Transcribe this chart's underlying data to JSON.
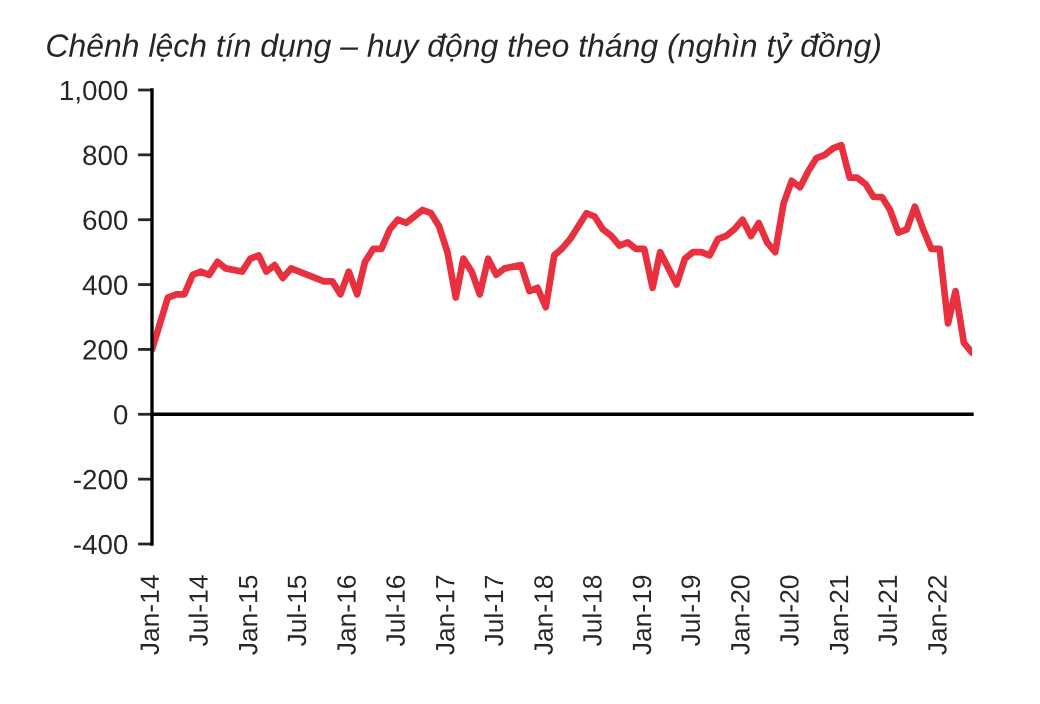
{
  "chart_data": {
    "type": "line",
    "title": "Chênh lệch tín dụng – huy động theo tháng (nghìn tỷ đồng)",
    "x": [
      "2014-01",
      "2014-03",
      "2014-04",
      "2014-05",
      "2014-06",
      "2014-07",
      "2014-08",
      "2014-09",
      "2014-10",
      "2014-12",
      "2015-01",
      "2015-02",
      "2015-03",
      "2015-04",
      "2015-05",
      "2015-06",
      "2015-08",
      "2015-10",
      "2015-11",
      "2015-12",
      "2016-01",
      "2016-02",
      "2016-03",
      "2016-04",
      "2016-05",
      "2016-06",
      "2016-07",
      "2016-08",
      "2016-10",
      "2016-11",
      "2016-12",
      "2017-01",
      "2017-02",
      "2017-03",
      "2017-04",
      "2017-05",
      "2017-06",
      "2017-07",
      "2017-08",
      "2017-10",
      "2017-11",
      "2017-12",
      "2018-01",
      "2018-02",
      "2018-03",
      "2018-04",
      "2018-06",
      "2018-07",
      "2018-08",
      "2018-09",
      "2018-10",
      "2018-11",
      "2018-12",
      "2019-01",
      "2019-02",
      "2019-03",
      "2019-04",
      "2019-05",
      "2019-06",
      "2019-07",
      "2019-08",
      "2019-09",
      "2019-10",
      "2019-11",
      "2019-12",
      "2020-01",
      "2020-02",
      "2020-03",
      "2020-04",
      "2020-05",
      "2020-06",
      "2020-07",
      "2020-08",
      "2020-09",
      "2020-10",
      "2020-11",
      "2020-12",
      "2021-01",
      "2021-02",
      "2021-03",
      "2021-04",
      "2021-05",
      "2021-06",
      "2021-07",
      "2021-08",
      "2021-09",
      "2021-10",
      "2021-11",
      "2021-12",
      "2022-01",
      "2022-02",
      "2022-03",
      "2022-04",
      "2022-05"
    ],
    "series": [
      {
        "color": "#e8303f",
        "values": [
          200,
          360,
          370,
          370,
          430,
          440,
          430,
          470,
          450,
          440,
          480,
          490,
          440,
          460,
          420,
          450,
          430,
          410,
          410,
          370,
          440,
          370,
          470,
          510,
          510,
          570,
          600,
          590,
          630,
          620,
          580,
          500,
          360,
          480,
          440,
          370,
          480,
          430,
          450,
          460,
          380,
          390,
          330,
          490,
          510,
          540,
          620,
          610,
          570,
          550,
          520,
          530,
          510,
          510,
          390,
          500,
          450,
          400,
          480,
          500,
          500,
          490,
          540,
          550,
          570,
          600,
          550,
          590,
          530,
          500,
          650,
          720,
          700,
          750,
          790,
          800,
          820,
          830,
          730,
          730,
          710,
          670,
          670,
          630,
          560,
          570,
          640,
          570,
          510,
          510,
          280,
          380,
          220,
          190
        ]
      }
    ],
    "xlim": [
      "2014-01",
      "2022-05"
    ],
    "xticks": [
      {
        "value": "2014-01",
        "label": "Jan-14"
      },
      {
        "value": "2014-07",
        "label": "Jul-14"
      },
      {
        "value": "2015-01",
        "label": "Jan-15"
      },
      {
        "value": "2015-07",
        "label": "Jul-15"
      },
      {
        "value": "2016-01",
        "label": "Jan-16"
      },
      {
        "value": "2016-07",
        "label": "Jul-16"
      },
      {
        "value": "2017-01",
        "label": "Jan-17"
      },
      {
        "value": "2017-07",
        "label": "Jul-17"
      },
      {
        "value": "2018-01",
        "label": "Jan-18"
      },
      {
        "value": "2018-07",
        "label": "Jul-18"
      },
      {
        "value": "2019-01",
        "label": "Jan-19"
      },
      {
        "value": "2019-07",
        "label": "Jul-19"
      },
      {
        "value": "2020-01",
        "label": "Jan-20"
      },
      {
        "value": "2020-07",
        "label": "Jul-20"
      },
      {
        "value": "2021-01",
        "label": "Jan-21"
      },
      {
        "value": "2021-07",
        "label": "Jul-21"
      },
      {
        "value": "2022-01",
        "label": "Jan-22"
      }
    ],
    "ylim": [
      -400,
      1000
    ],
    "yticks": [
      {
        "value": -400,
        "label": "-400"
      },
      {
        "value": -200,
        "label": "-200"
      },
      0,
      200,
      400,
      600,
      800,
      {
        "value": 1000,
        "label": "1,000"
      }
    ],
    "legend": false,
    "marker": "none",
    "line_style": "solid"
  }
}
